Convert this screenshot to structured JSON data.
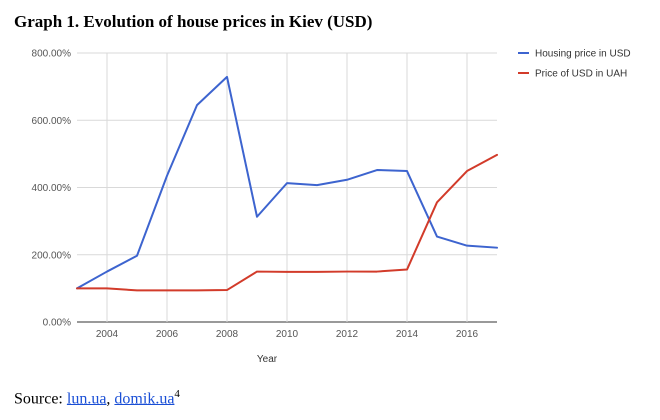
{
  "figure": {
    "title": "Graph 1. Evolution of house prices in Kiev (USD)",
    "source_label": "Source:",
    "source_links": [
      "lun.ua",
      "domik.ua"
    ],
    "source_separator": ",",
    "source_footnote": "4"
  },
  "chart_data": {
    "type": "line",
    "title": "",
    "xlabel": "Year",
    "ylabel": "",
    "xlim": [
      2003,
      2017
    ],
    "ylim": [
      0,
      800
    ],
    "x_ticks": [
      2004,
      2006,
      2008,
      2010,
      2012,
      2014,
      2016
    ],
    "y_ticks": [
      {
        "value": 0,
        "label": "0.00%"
      },
      {
        "value": 200,
        "label": "200.00%"
      },
      {
        "value": 400,
        "label": "400.00%"
      },
      {
        "value": 600,
        "label": "600.00%"
      },
      {
        "value": 800,
        "label": "800.00%"
      }
    ],
    "grid": true,
    "legend_position": "right",
    "x": [
      2003,
      2004,
      2005,
      2006,
      2007,
      2008,
      2009,
      2010,
      2011,
      2012,
      2013,
      2014,
      2015,
      2016,
      2017
    ],
    "series": [
      {
        "name": "Housing price in USD",
        "color": "#3d64cf",
        "values": [
          100,
          150,
          197,
          435,
          645,
          729,
          313,
          413,
          407,
          423,
          452,
          449,
          254,
          227,
          221
        ]
      },
      {
        "name": "Price of USD in UAH",
        "color": "#d23b2a",
        "values": [
          100,
          100,
          94,
          94,
          94,
          95,
          150,
          149,
          149,
          150,
          150,
          156,
          356,
          449,
          497
        ]
      }
    ]
  }
}
